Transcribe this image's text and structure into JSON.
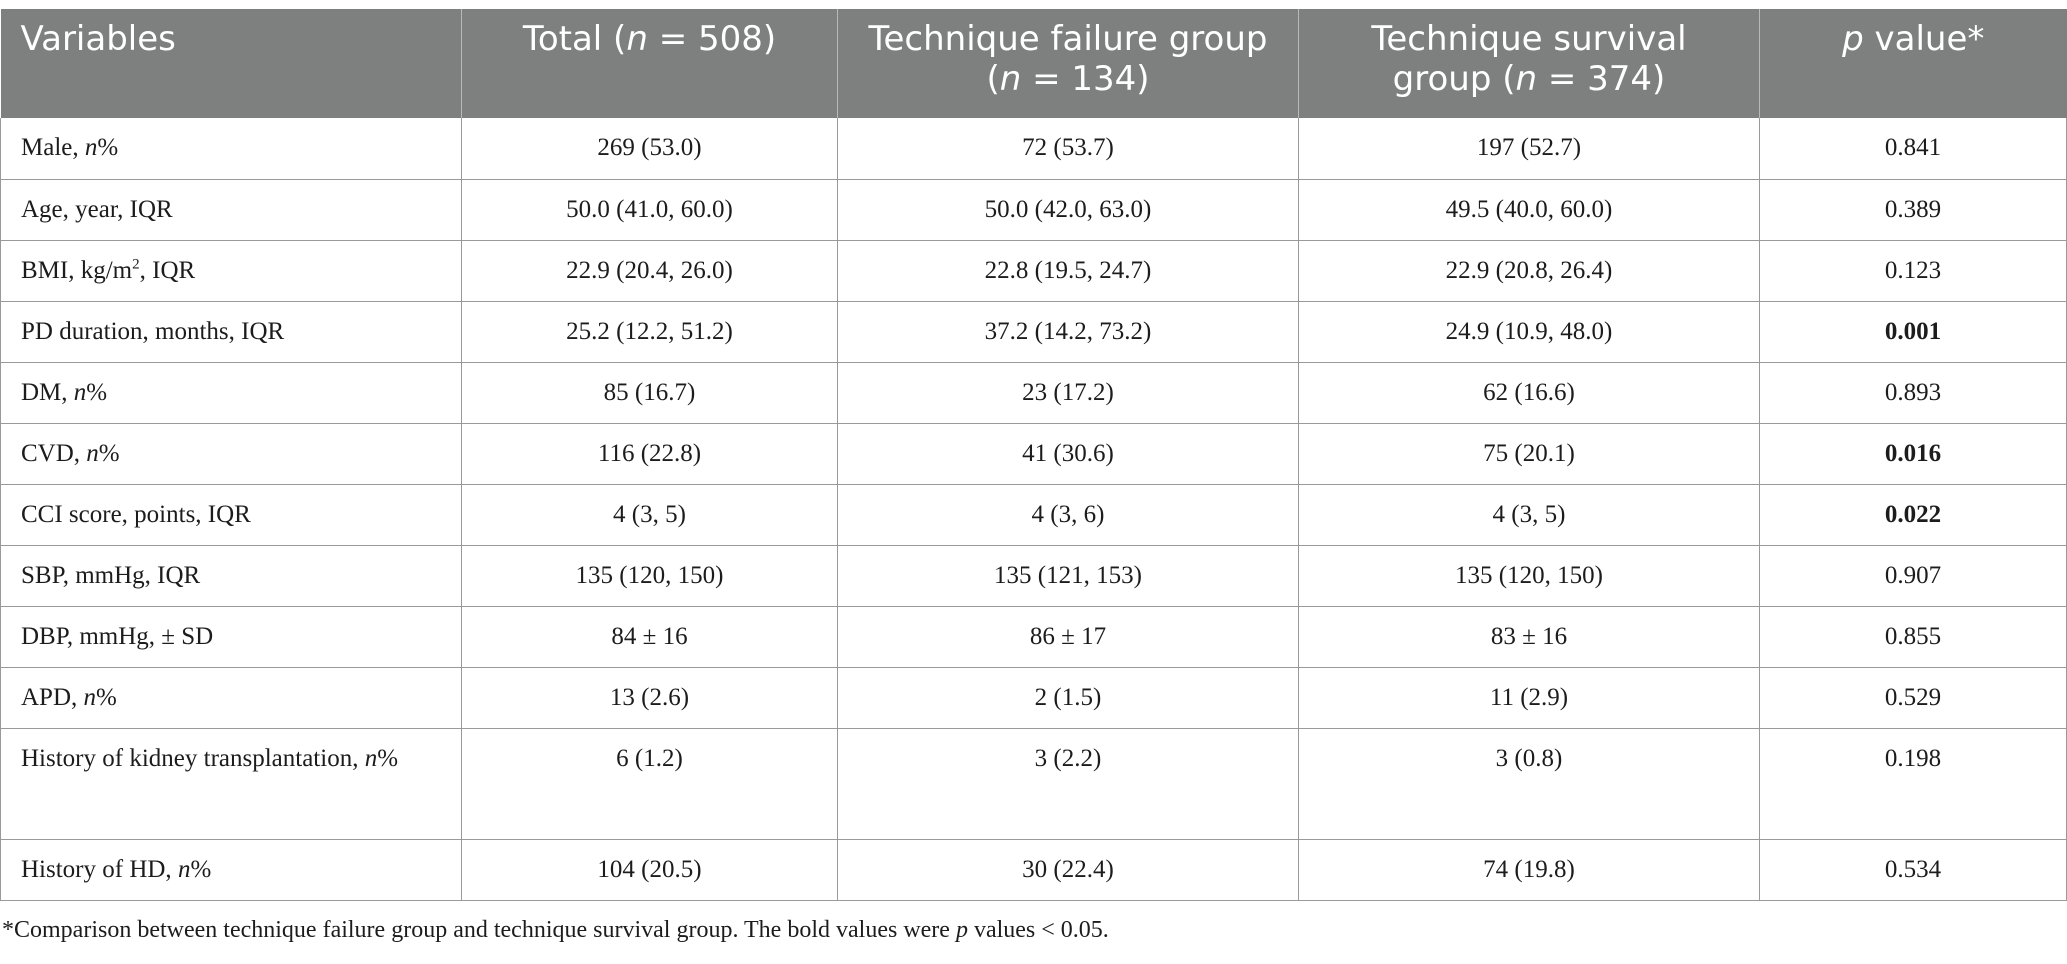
{
  "table": {
    "headers": [
      {
        "pre": "Variables"
      },
      {
        "pre": "Total (",
        "italic": "n",
        "post": " = 508)"
      },
      {
        "pre": "Technique failure group (",
        "italic": "n",
        "post": " = 134)"
      },
      {
        "pre": "Technique survival group (",
        "italic": "n",
        "post": " = 374)"
      },
      {
        "pre": "",
        "italic": "p",
        "post": " value*"
      }
    ],
    "rows": [
      {
        "label": {
          "pre": "Male, ",
          "italic": "n",
          "post": "%"
        },
        "total": "269 (53.0)",
        "failure": "72 (53.7)",
        "survival": "197 (52.7)",
        "p": "0.841",
        "p_bold": false
      },
      {
        "label": {
          "pre": "Age, year, IQR"
        },
        "total": "50.0 (41.0, 60.0)",
        "failure": "50.0 (42.0, 63.0)",
        "survival": "49.5 (40.0, 60.0)",
        "p": "0.389",
        "p_bold": false
      },
      {
        "label": {
          "pre": "BMI, kg/m",
          "sup": "2",
          "post": ", IQR"
        },
        "total": "22.9 (20.4, 26.0)",
        "failure": "22.8 (19.5, 24.7)",
        "survival": "22.9 (20.8, 26.4)",
        "p": "0.123",
        "p_bold": false
      },
      {
        "label": {
          "pre": "PD duration, months, IQR"
        },
        "total": "25.2 (12.2, 51.2)",
        "failure": "37.2 (14.2, 73.2)",
        "survival": "24.9 (10.9, 48.0)",
        "p": "0.001",
        "p_bold": true
      },
      {
        "label": {
          "pre": "DM, ",
          "italic": "n",
          "post": "%"
        },
        "total": "85 (16.7)",
        "failure": "23 (17.2)",
        "survival": "62 (16.6)",
        "p": "0.893",
        "p_bold": false
      },
      {
        "label": {
          "pre": "CVD, ",
          "italic": "n",
          "post": "%"
        },
        "total": "116 (22.8)",
        "failure": "41 (30.6)",
        "survival": "75 (20.1)",
        "p": "0.016",
        "p_bold": true
      },
      {
        "label": {
          "pre": "CCI score, points, IQR"
        },
        "total": "4 (3, 5)",
        "failure": "4 (3, 6)",
        "survival": "4 (3, 5)",
        "p": "0.022",
        "p_bold": true
      },
      {
        "label": {
          "pre": "SBP, mmHg, IQR"
        },
        "total": "135 (120, 150)",
        "failure": "135 (121, 153)",
        "survival": "135 (120, 150)",
        "p": "0.907",
        "p_bold": false
      },
      {
        "label": {
          "pre": "DBP, mmHg, ± SD"
        },
        "total": "84 ± 16",
        "failure": "86 ± 17",
        "survival": "83 ± 16",
        "p": "0.855",
        "p_bold": false
      },
      {
        "label": {
          "pre": "APD, ",
          "italic": "n",
          "post": "%"
        },
        "total": "13 (2.6)",
        "failure": "2 (1.5)",
        "survival": "11 (2.9)",
        "p": "0.529",
        "p_bold": false
      },
      {
        "label": {
          "pre": "History of kidney transplantation, ",
          "italic": "n",
          "post": "%"
        },
        "total": "6 (1.2)",
        "failure": "3 (2.2)",
        "survival": "3 (0.8)",
        "p": "0.198",
        "p_bold": false,
        "tall": true
      },
      {
        "label": {
          "pre": "History of HD, ",
          "italic": "n",
          "post": "%"
        },
        "total": "104 (20.5)",
        "failure": "30 (22.4)",
        "survival": "74 (19.8)",
        "p": "0.534",
        "p_bold": false
      }
    ]
  },
  "footnote": {
    "pre": "*Comparison between technique failure group and technique survival group. The bold values were ",
    "italic": "p",
    "post": " values < 0.05."
  }
}
